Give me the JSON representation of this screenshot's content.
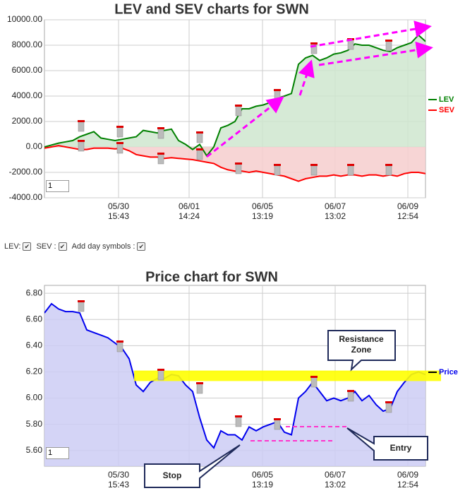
{
  "chart_data": [
    {
      "type": "line",
      "title": "LEV and SEV charts for SWN",
      "range_input": "1",
      "xlim": [
        0,
        54
      ],
      "xticks": [
        {
          "value": 10.5,
          "label": "05/30",
          "sublabel": "15:43"
        },
        {
          "value": 20.5,
          "label": "06/01",
          "sublabel": "14:24"
        },
        {
          "value": 30.9,
          "label": "06/05",
          "sublabel": "13:19"
        },
        {
          "value": 41.2,
          "label": "06/07",
          "sublabel": "13:02"
        },
        {
          "value": 51.5,
          "label": "06/09",
          "sublabel": "12:54"
        }
      ],
      "ylim": [
        -4000,
        10000
      ],
      "yticks": [
        {
          "value": 10000,
          "label": "10000.00"
        },
        {
          "value": 8000,
          "label": "8000.00"
        },
        {
          "value": 6000,
          "label": "6000.00"
        },
        {
          "value": 4000,
          "label": "4000.00"
        },
        {
          "value": 2000,
          "label": "2000.00"
        },
        {
          "value": 0,
          "label": "0.00"
        },
        {
          "value": -2000,
          "label": "-2000.00"
        },
        {
          "value": -4000,
          "label": "-4000.00"
        }
      ],
      "grid": true,
      "area": "zero",
      "legend": "right",
      "series": [
        {
          "name": "LEV",
          "color": "#008000",
          "fill": "#cfe6cf",
          "values": [
            0,
            150,
            300,
            400,
            500,
            800,
            1000,
            1200,
            700,
            600,
            500,
            600,
            700,
            800,
            1300,
            1200,
            1100,
            1300,
            1400,
            500,
            200,
            -200,
            200,
            -700,
            0,
            1500,
            1700,
            2000,
            3000,
            3000,
            3200,
            3300,
            3500,
            3800,
            4000,
            4200,
            6500,
            7000,
            7200,
            6800,
            7000,
            7300,
            7400,
            7600,
            8100,
            8000,
            8000,
            7800,
            7600,
            7500,
            7800,
            8000,
            8200,
            8800,
            8300
          ]
        },
        {
          "name": "SEV",
          "color": "#ff0000",
          "fill": "#f6cece",
          "values": [
            -100,
            0,
            100,
            0,
            -100,
            -200,
            -200,
            -100,
            -100,
            -100,
            -150,
            -100,
            -300,
            -600,
            -700,
            -800,
            -800,
            -900,
            -850,
            -900,
            -950,
            -1000,
            -1100,
            -1200,
            -1300,
            -1600,
            -1800,
            -1900,
            -1900,
            -2000,
            -1900,
            -2000,
            -2100,
            -2200,
            -2300,
            -2500,
            -2700,
            -2500,
            -2400,
            -2300,
            -2300,
            -2200,
            -2300,
            -2200,
            -2200,
            -2300,
            -2200,
            -2200,
            -2300,
            -2200,
            -2300,
            -2100,
            -2000,
            -2000,
            -2100
          ]
        }
      ]
    },
    {
      "type": "line",
      "title": "Price chart for SWN",
      "range_input": "1",
      "xlim": [
        0,
        54
      ],
      "xticks": [
        {
          "value": 10.5,
          "label": "05/30",
          "sublabel": "15:43"
        },
        {
          "value": 20.5,
          "label": "06/01",
          "sublabel": "14:24"
        },
        {
          "value": 30.9,
          "label": "06/05",
          "sublabel": "13:19"
        },
        {
          "value": 41.2,
          "label": "06/07",
          "sublabel": "13:02"
        },
        {
          "value": 51.5,
          "label": "06/09",
          "sublabel": "12:54"
        }
      ],
      "ylim": [
        5.48,
        6.86
      ],
      "yticks": [
        {
          "value": 6.8,
          "label": "6.80"
        },
        {
          "value": 6.6,
          "label": "6.60"
        },
        {
          "value": 6.4,
          "label": "6.40"
        },
        {
          "value": 6.2,
          "label": "6.20"
        },
        {
          "value": 6.0,
          "label": "6.00"
        },
        {
          "value": 5.8,
          "label": "5.80"
        },
        {
          "value": 5.6,
          "label": "5.60"
        }
      ],
      "grid": true,
      "area": "bottom",
      "legend": "right",
      "resistance_zone": [
        6.13,
        6.21
      ],
      "annotations": {
        "resistance": [
          "Resistance",
          "Zone"
        ],
        "entry": "Entry",
        "stop": "Stop"
      },
      "series": [
        {
          "name": "Price",
          "color": "#0000ee",
          "fill": "#ccccf5",
          "values": [
            6.65,
            6.72,
            6.68,
            6.66,
            6.66,
            6.65,
            6.52,
            6.5,
            6.48,
            6.46,
            6.42,
            6.38,
            6.3,
            6.1,
            6.05,
            6.12,
            6.15,
            6.15,
            6.18,
            6.17,
            6.1,
            6.05,
            5.85,
            5.68,
            5.62,
            5.75,
            5.72,
            5.72,
            5.68,
            5.78,
            5.75,
            5.78,
            5.8,
            5.82,
            5.74,
            5.72,
            6.0,
            6.05,
            6.12,
            6.05,
            5.98,
            6.0,
            5.98,
            6.0,
            6.05,
            5.98,
            6.02,
            5.95,
            5.9,
            5.92,
            6.05,
            6.12,
            6.18,
            6.2,
            6.18
          ]
        }
      ]
    }
  ],
  "controls": {
    "lev": "LEV:",
    "sev": "SEV :",
    "day_symbols": "Add day symbols :"
  }
}
